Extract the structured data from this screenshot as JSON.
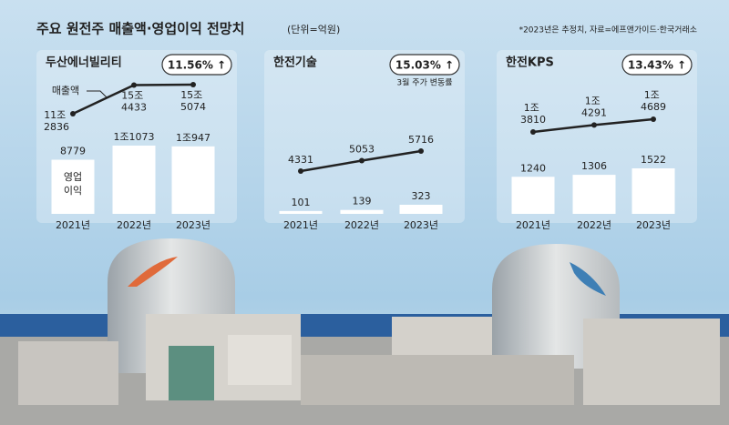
{
  "header": {
    "title": "주요 원전주 매출액·영업이익 전망치",
    "unit": "(단위=억원)",
    "note": "*2023년은 추정치, 자료=에프앤가이드·한국거래소"
  },
  "chart_data": [
    {
      "type": "combo",
      "title": "두산에너빌리티",
      "badge": "11.56% ↑",
      "categories": [
        "2021년",
        "2022년",
        "2023년"
      ],
      "series": [
        {
          "name": "매출액",
          "type": "line",
          "color": "#222222",
          "values": [
            112836,
            154433,
            155074
          ],
          "value_labels": [
            "11조 2836",
            "15조 4433",
            "15조 5074"
          ]
        },
        {
          "name": "영업이익",
          "type": "bar",
          "color": "#ffffff",
          "values": [
            8779,
            11073,
            10947
          ],
          "value_labels": [
            "8779",
            "1조1073",
            "1조947"
          ]
        }
      ]
    },
    {
      "type": "combo",
      "title": "한전기술",
      "badge": "15.03% ↑",
      "note": "3월 주가 변동률",
      "categories": [
        "2021년",
        "2022년",
        "2023년"
      ],
      "series": [
        {
          "type": "line",
          "color": "#222222",
          "values": [
            4331,
            5053,
            5716
          ]
        },
        {
          "type": "bar",
          "color": "#ffffff",
          "values": [
            101,
            139,
            323
          ]
        }
      ]
    },
    {
      "type": "combo",
      "title": "한전KPS",
      "badge": "13.43% ↑",
      "categories": [
        "2021년",
        "2022년",
        "2023년"
      ],
      "series": [
        {
          "type": "line",
          "color": "#222222",
          "values": [
            13810,
            14291,
            14689
          ],
          "value_labels": [
            "1조 3810",
            "1조 4291",
            "1조 4689"
          ]
        },
        {
          "type": "bar",
          "color": "#ffffff",
          "values": [
            1240,
            1306,
            1522
          ]
        }
      ]
    }
  ]
}
